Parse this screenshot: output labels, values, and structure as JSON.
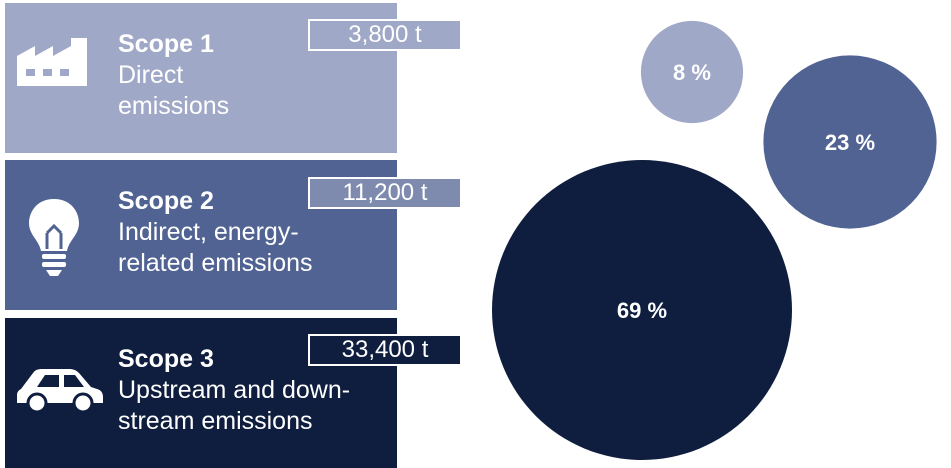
{
  "scopes": [
    {
      "title": "Scope 1",
      "desc_line1": "Direct",
      "desc_line2": "emissions",
      "amount": "3,800 t",
      "icon": "factory-icon"
    },
    {
      "title": "Scope 2",
      "desc_line1": "Indirect, energy-",
      "desc_line2": "related emissions",
      "amount": "11,200 t",
      "icon": "lightbulb-icon"
    },
    {
      "title": "Scope 3",
      "desc_line1": "Upstream and down-",
      "desc_line2": "stream emissions",
      "amount": "33,400 t",
      "icon": "car-icon"
    }
  ],
  "colors": {
    "scope1": "#a0a8c7",
    "scope2": "#516392",
    "scope3": "#0f1d3e"
  },
  "chart_data": {
    "type": "bubble",
    "categories": [
      "Scope 1",
      "Scope 2",
      "Scope 3"
    ],
    "values": [
      8,
      23,
      69
    ],
    "labels": [
      "8 %",
      "23 %",
      "69 %"
    ],
    "colors": [
      "#a0a8c7",
      "#516392",
      "#0f1d3e"
    ]
  }
}
